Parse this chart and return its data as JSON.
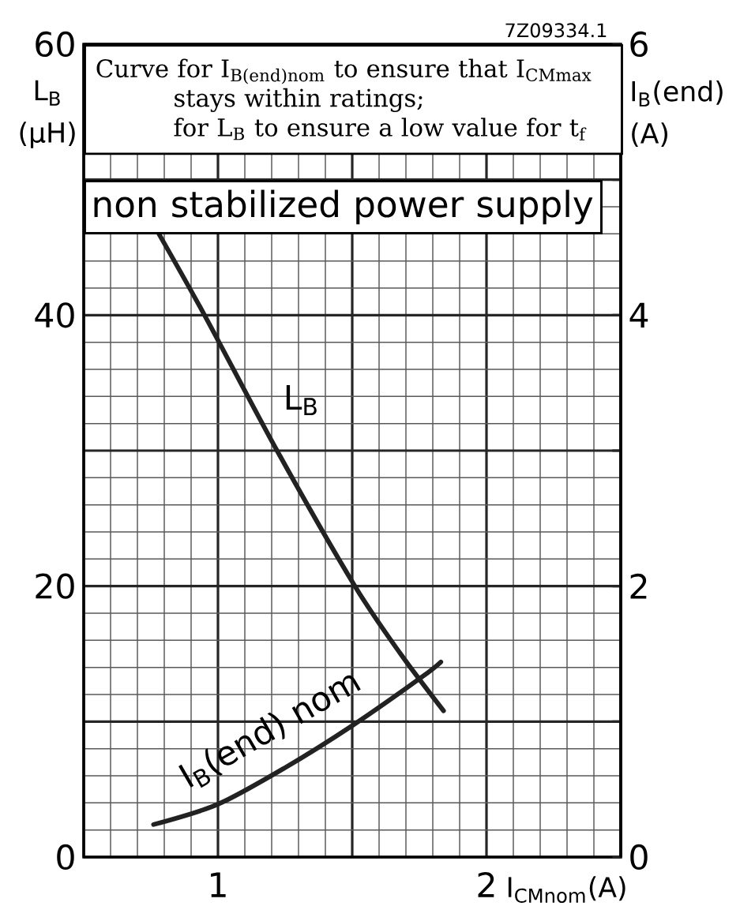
{
  "chart_data": {
    "type": "line",
    "annotations": [
      "7Z09334.1",
      "Curve for I$_{B(end)nom}$ to ensure that I$_{CMmax}$",
      "stays within ratings;",
      "for L$_{B}$ to ensure a low value for t$_{f}$",
      "non stabilized power supply"
    ],
    "xlabel": "I$_{CMnom}$(A)",
    "ylabel": "L$_{B}$ (µH)",
    "y2label": "I$_{B}$(end) (A)",
    "xlim": [
      0.5,
      2.5
    ],
    "xticks": [
      {
        "value": 0.5,
        "label": null
      },
      1,
      {
        "value": 1.5,
        "label": null
      },
      2,
      {
        "value": 2.5,
        "label": null
      }
    ],
    "ylim": [
      0,
      60
    ],
    "yticks": [
      0,
      {
        "value": 10,
        "label": null
      },
      20,
      {
        "value": 30,
        "label": null
      },
      40,
      {
        "value": 50,
        "label": null
      },
      60
    ],
    "y2lim": [
      0,
      6
    ],
    "y2ticks": [
      0,
      {
        "value": 1,
        "label": null
      },
      2,
      {
        "value": 3,
        "label": null
      },
      4,
      {
        "value": 5,
        "label": null
      },
      6
    ],
    "grid": true,
    "series": [
      {
        "name": "L$_{B}$",
        "color": "#222222",
        "x": [
          0.78,
          0.95,
          1.22,
          1.51,
          1.68,
          1.84
        ],
        "values": [
          46,
          40,
          30,
          20,
          15,
          10.8
        ]
      },
      {
        "name": "I$_{B}$(end) nom",
        "color": "#222222",
        "axis": "y2",
        "x": [
          0.76,
          1.0,
          1.25,
          1.5,
          1.76,
          1.83
        ],
        "values": [
          0.24,
          0.39,
          0.66,
          0.97,
          1.33,
          1.44
        ]
      }
    ]
  }
}
